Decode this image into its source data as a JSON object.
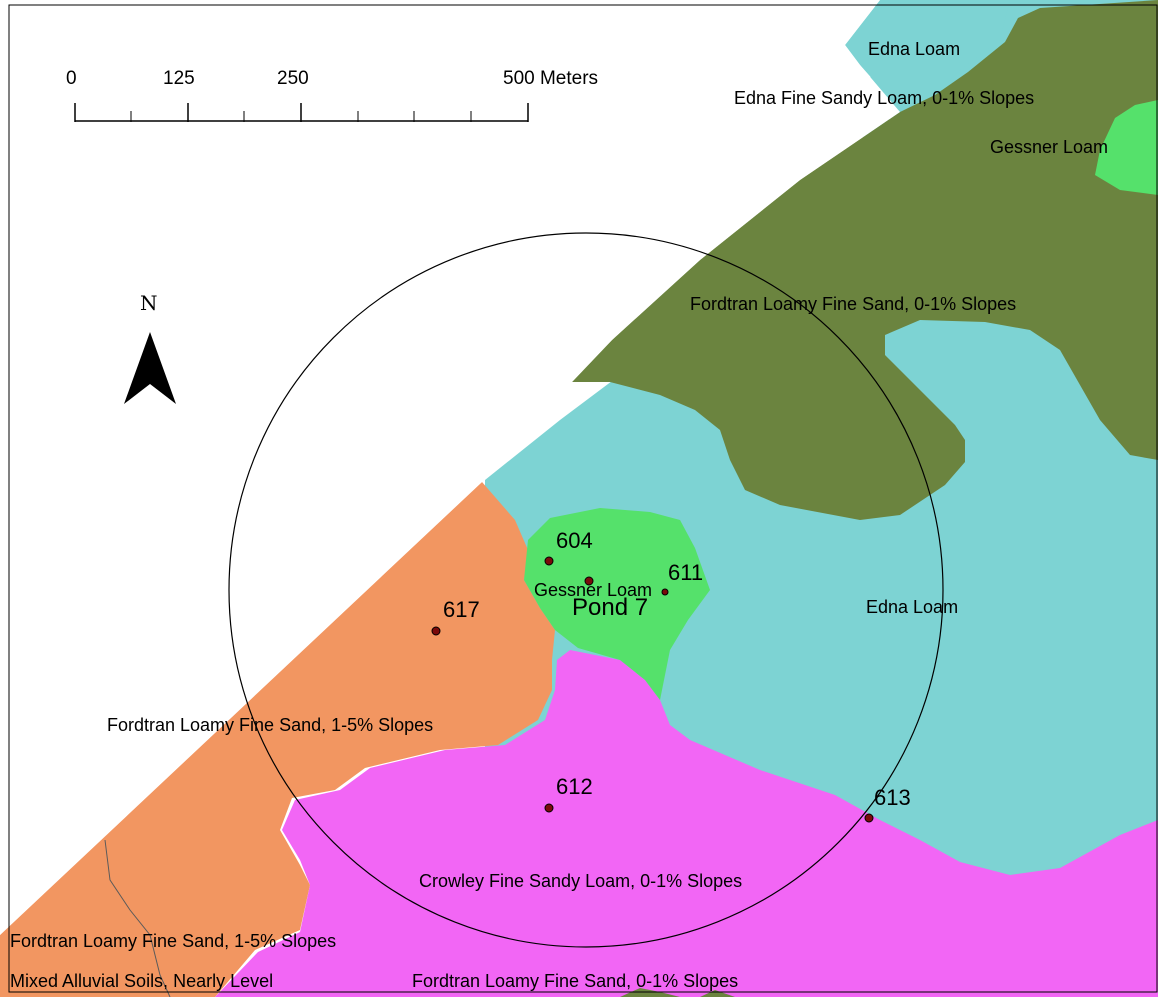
{
  "map": {
    "colors": {
      "edna_loam": "#7dd3d3",
      "fordtran_0_1": "#6b843f",
      "gessner_loam": "#55e16b",
      "fordtran_1_5": "#f29661",
      "crowley": "#f266f5",
      "background": "#ffffff",
      "sample_point": "#7a0a0a",
      "boundary": "#000000"
    },
    "soil_labels": {
      "edna_loam_top": "Edna Loam",
      "edna_fine_sandy_loam": "Edna Fine Sandy Loam, 0-1% Slopes",
      "gessner_loam_top": "Gessner Loam",
      "fordtran_0_1_top": "Fordtran Loamy Fine Sand, 0-1% Slopes",
      "gessner_loam_pond": "Gessner Loam",
      "edna_loam_mid": "Edna Loam",
      "fordtran_1_5_mid": "Fordtran Loamy Fine Sand, 1-5% Slopes",
      "crowley": "Crowley Fine Sandy Loam, 0-1% Slopes",
      "fordtran_1_5_bottom": "Fordtran Loamy Fine Sand, 1-5% Slopes",
      "mixed_alluvial": "Mixed Alluvial Soils, Nearly Level",
      "fordtran_0_1_bottom": "Fordtran Loamy Fine Sand, 0-1% Slopes"
    },
    "pond_label": "Pond 7",
    "sample_points": {
      "p604": "604",
      "p611": "611",
      "p617": "617",
      "p612": "612",
      "p613": "613"
    },
    "scale_bar": {
      "tick_0": "0",
      "tick_125": "125",
      "tick_250": "250",
      "tick_500": "500 Meters"
    },
    "north_arrow": "N",
    "icons": {
      "north_arrow": "north-arrow-icon"
    }
  }
}
